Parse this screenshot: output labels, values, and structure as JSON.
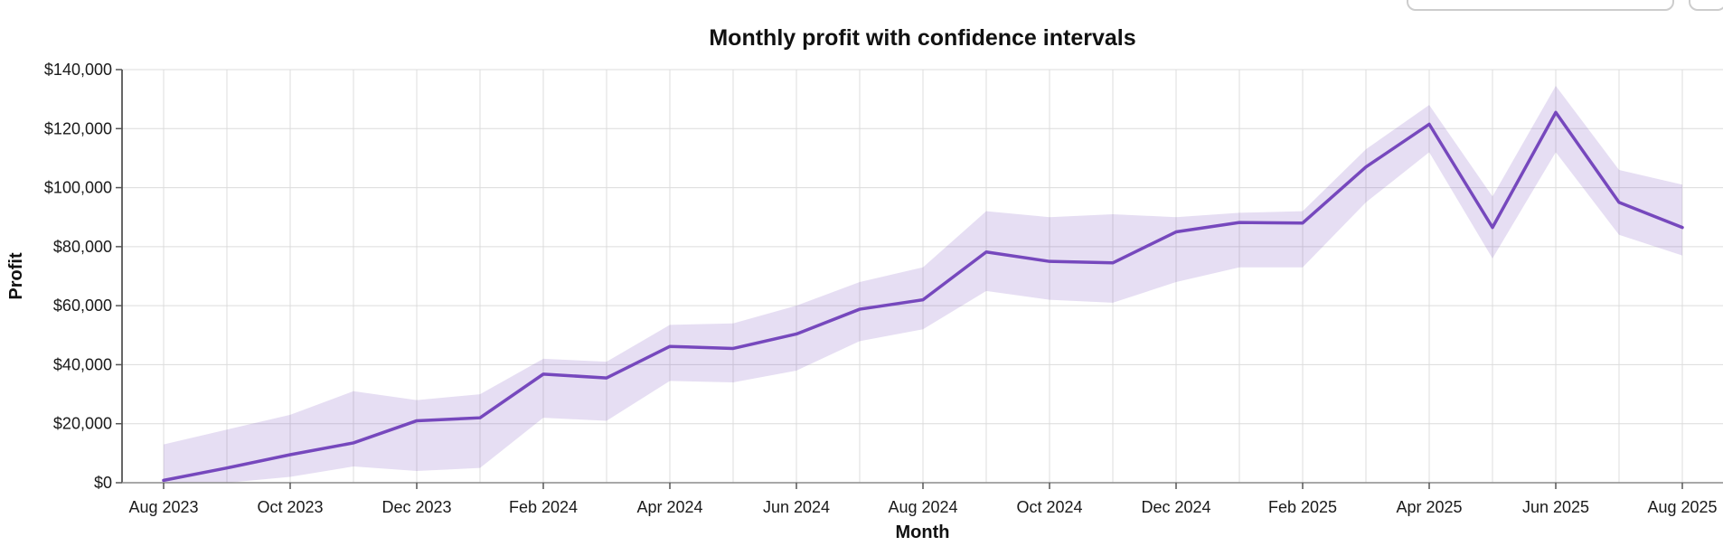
{
  "chart_data": {
    "type": "line",
    "title": "Monthly profit with confidence intervals",
    "xlabel": "Month",
    "ylabel": "Profit",
    "x": [
      "Aug 2023",
      "Sep 2023",
      "Oct 2023",
      "Nov 2023",
      "Dec 2023",
      "Jan 2024",
      "Feb 2024",
      "Mar 2024",
      "Apr 2024",
      "May 2024",
      "Jun 2024",
      "Jul 2024",
      "Aug 2024",
      "Sep 2024",
      "Oct 2024",
      "Nov 2024",
      "Dec 2024",
      "Jan 2025",
      "Feb 2025",
      "Mar 2025",
      "Apr 2025",
      "May 2025",
      "Jun 2025",
      "Jul 2025",
      "Aug 2025"
    ],
    "xtick_labels": [
      "Aug 2023",
      "Oct 2023",
      "Dec 2023",
      "Feb 2024",
      "Apr 2024",
      "Jun 2024",
      "Aug 2024",
      "Oct 2024",
      "Dec 2024",
      "Feb 2025",
      "Apr 2025",
      "Jun 2025",
      "Aug 2025"
    ],
    "xtick_every": 2,
    "ylim": [
      0,
      140000
    ],
    "ytick_step": 20000,
    "ytick_labels": [
      "$0",
      "$20,000",
      "$40,000",
      "$60,000",
      "$80,000",
      "$100,000",
      "$120,000",
      "$140,000"
    ],
    "series": [
      {
        "name": "Profit",
        "values": [
          800,
          5000,
          9500,
          13500,
          21000,
          22000,
          36800,
          35500,
          46200,
          45500,
          50400,
          58800,
          62000,
          78200,
          75000,
          74500,
          85000,
          88200,
          88000,
          107000,
          121500,
          86500,
          125500,
          95000,
          86500
        ]
      }
    ],
    "band": {
      "label": "confidence interval",
      "lower": [
        0,
        0,
        2000,
        5500,
        4000,
        5000,
        22000,
        21000,
        34500,
        34000,
        38000,
        48000,
        52000,
        65000,
        62000,
        61000,
        68000,
        73000,
        73000,
        95000,
        112000,
        76000,
        112000,
        84000,
        77000
      ],
      "upper": [
        13000,
        18000,
        23000,
        31000,
        28000,
        30000,
        42000,
        41000,
        53500,
        54000,
        60000,
        68000,
        73000,
        92000,
        90000,
        91000,
        90000,
        91500,
        92000,
        113000,
        128000,
        97000,
        134500,
        106000,
        101000
      ]
    },
    "grid": true,
    "legend": "none",
    "colors": {
      "line": "#7648bd",
      "band_fill": "#7648bd",
      "band_opacity": 0.18,
      "grid": "#dcdcdc",
      "axis_y": "#333333",
      "axis_x": "#8c8c8c",
      "text": "#1a1a1a"
    }
  }
}
